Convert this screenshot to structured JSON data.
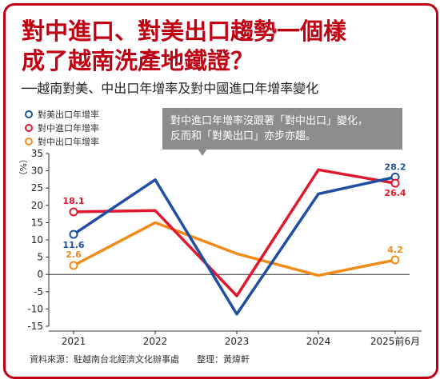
{
  "title": "對中進口、對美出口趨勢一個樣成了越南洗產地鐵證？",
  "title_lines": [
    "對中進口、對美出口趨勢一個樣",
    "成了越南洗產地鐵證？"
  ],
  "subtitle": "──越南對美、中出口年增率及對中國進口年增率變化",
  "callout": {
    "lines": [
      "對中進口年增率沒跟著「對中出口」變化，",
      "反而和「對美出口」亦步亦趨。"
    ]
  },
  "source": "資料來源：駐越南台北經濟文化辦事處　　整理：黃煒軒",
  "colors": {
    "title": "#c00012",
    "us_export": "#1f4fa3",
    "cn_import": "#e0182d",
    "cn_export": "#f08c1a",
    "callout_bg": "#8c8c8c"
  },
  "chart_data": {
    "type": "line",
    "ylabel": "（%）",
    "xlabel": "",
    "ylim": [
      -15,
      35
    ],
    "yticks": [
      35,
      30,
      25,
      20,
      15,
      10,
      5,
      0,
      -5,
      -10,
      -15
    ],
    "categories": [
      "2021",
      "2022",
      "2023",
      "2024",
      "2025前6月"
    ],
    "series": [
      {
        "name": "對美出口年增率",
        "color": "#1f4fa3",
        "values": [
          11.6,
          27.4,
          -11.5,
          23.3,
          28.2
        ]
      },
      {
        "name": "對中進口年增率",
        "color": "#e0182d",
        "values": [
          18.1,
          18.5,
          -6.2,
          30.3,
          26.4
        ]
      },
      {
        "name": "對中出口年增率",
        "color": "#f08c1a",
        "values": [
          2.6,
          15.0,
          6.0,
          -0.3,
          4.2
        ]
      }
    ],
    "data_labels": [
      {
        "series": 0,
        "index": 0,
        "text": "11.6"
      },
      {
        "series": 0,
        "index": 4,
        "text": "28.2"
      },
      {
        "series": 1,
        "index": 0,
        "text": "18.1"
      },
      {
        "series": 1,
        "index": 4,
        "text": "26.4"
      },
      {
        "series": 2,
        "index": 0,
        "text": "2.6"
      },
      {
        "series": 2,
        "index": 4,
        "text": "4.2"
      }
    ],
    "grid": false,
    "legend_position": "top-left"
  }
}
